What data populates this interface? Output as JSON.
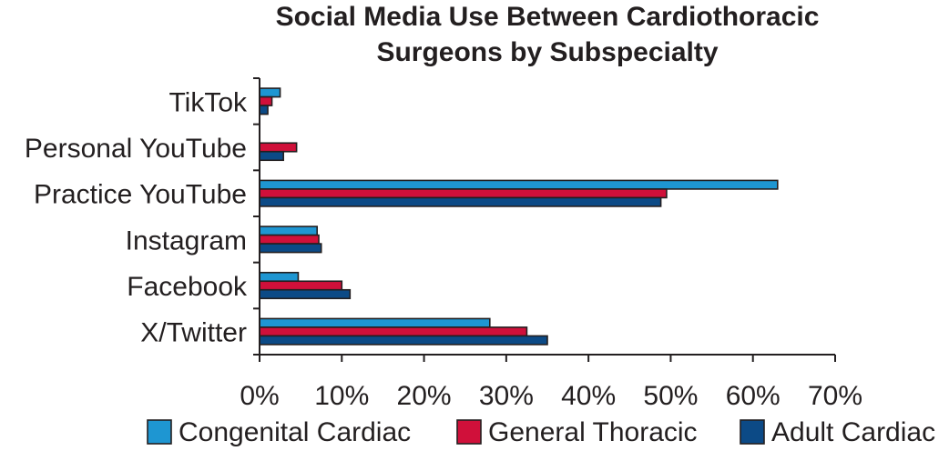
{
  "chart_data": {
    "type": "bar",
    "orientation": "horizontal",
    "title": "Social Media Use Between Cardiothoracic Surgeons by Subspecialty",
    "title_lines": [
      "Social Media Use Between Cardiothoracic",
      "Surgeons by Subspecialty"
    ],
    "xlabel": "",
    "ylabel": "",
    "xlim": [
      0,
      70
    ],
    "x_ticks": [
      "0%",
      "10%",
      "20%",
      "30%",
      "40%",
      "50%",
      "60%",
      "70%"
    ],
    "grid": false,
    "legend_position": "bottom",
    "categories": [
      "TikTok",
      "Personal YouTube",
      "Practice YouTube",
      "Instagram",
      "Facebook",
      "X/Twitter"
    ],
    "series": [
      {
        "name": "Congenital Cardiac",
        "color": "#1e96d2",
        "values": [
          2.5,
          0,
          63,
          7,
          4.7,
          28
        ]
      },
      {
        "name": "General Thoracic",
        "color": "#d0103a",
        "values": [
          1.5,
          4.5,
          49.5,
          7.2,
          10,
          32.5
        ]
      },
      {
        "name": "Adult Cardiac",
        "color": "#0c4a86",
        "values": [
          1,
          2.9,
          48.8,
          7.5,
          11,
          35
        ]
      }
    ]
  }
}
